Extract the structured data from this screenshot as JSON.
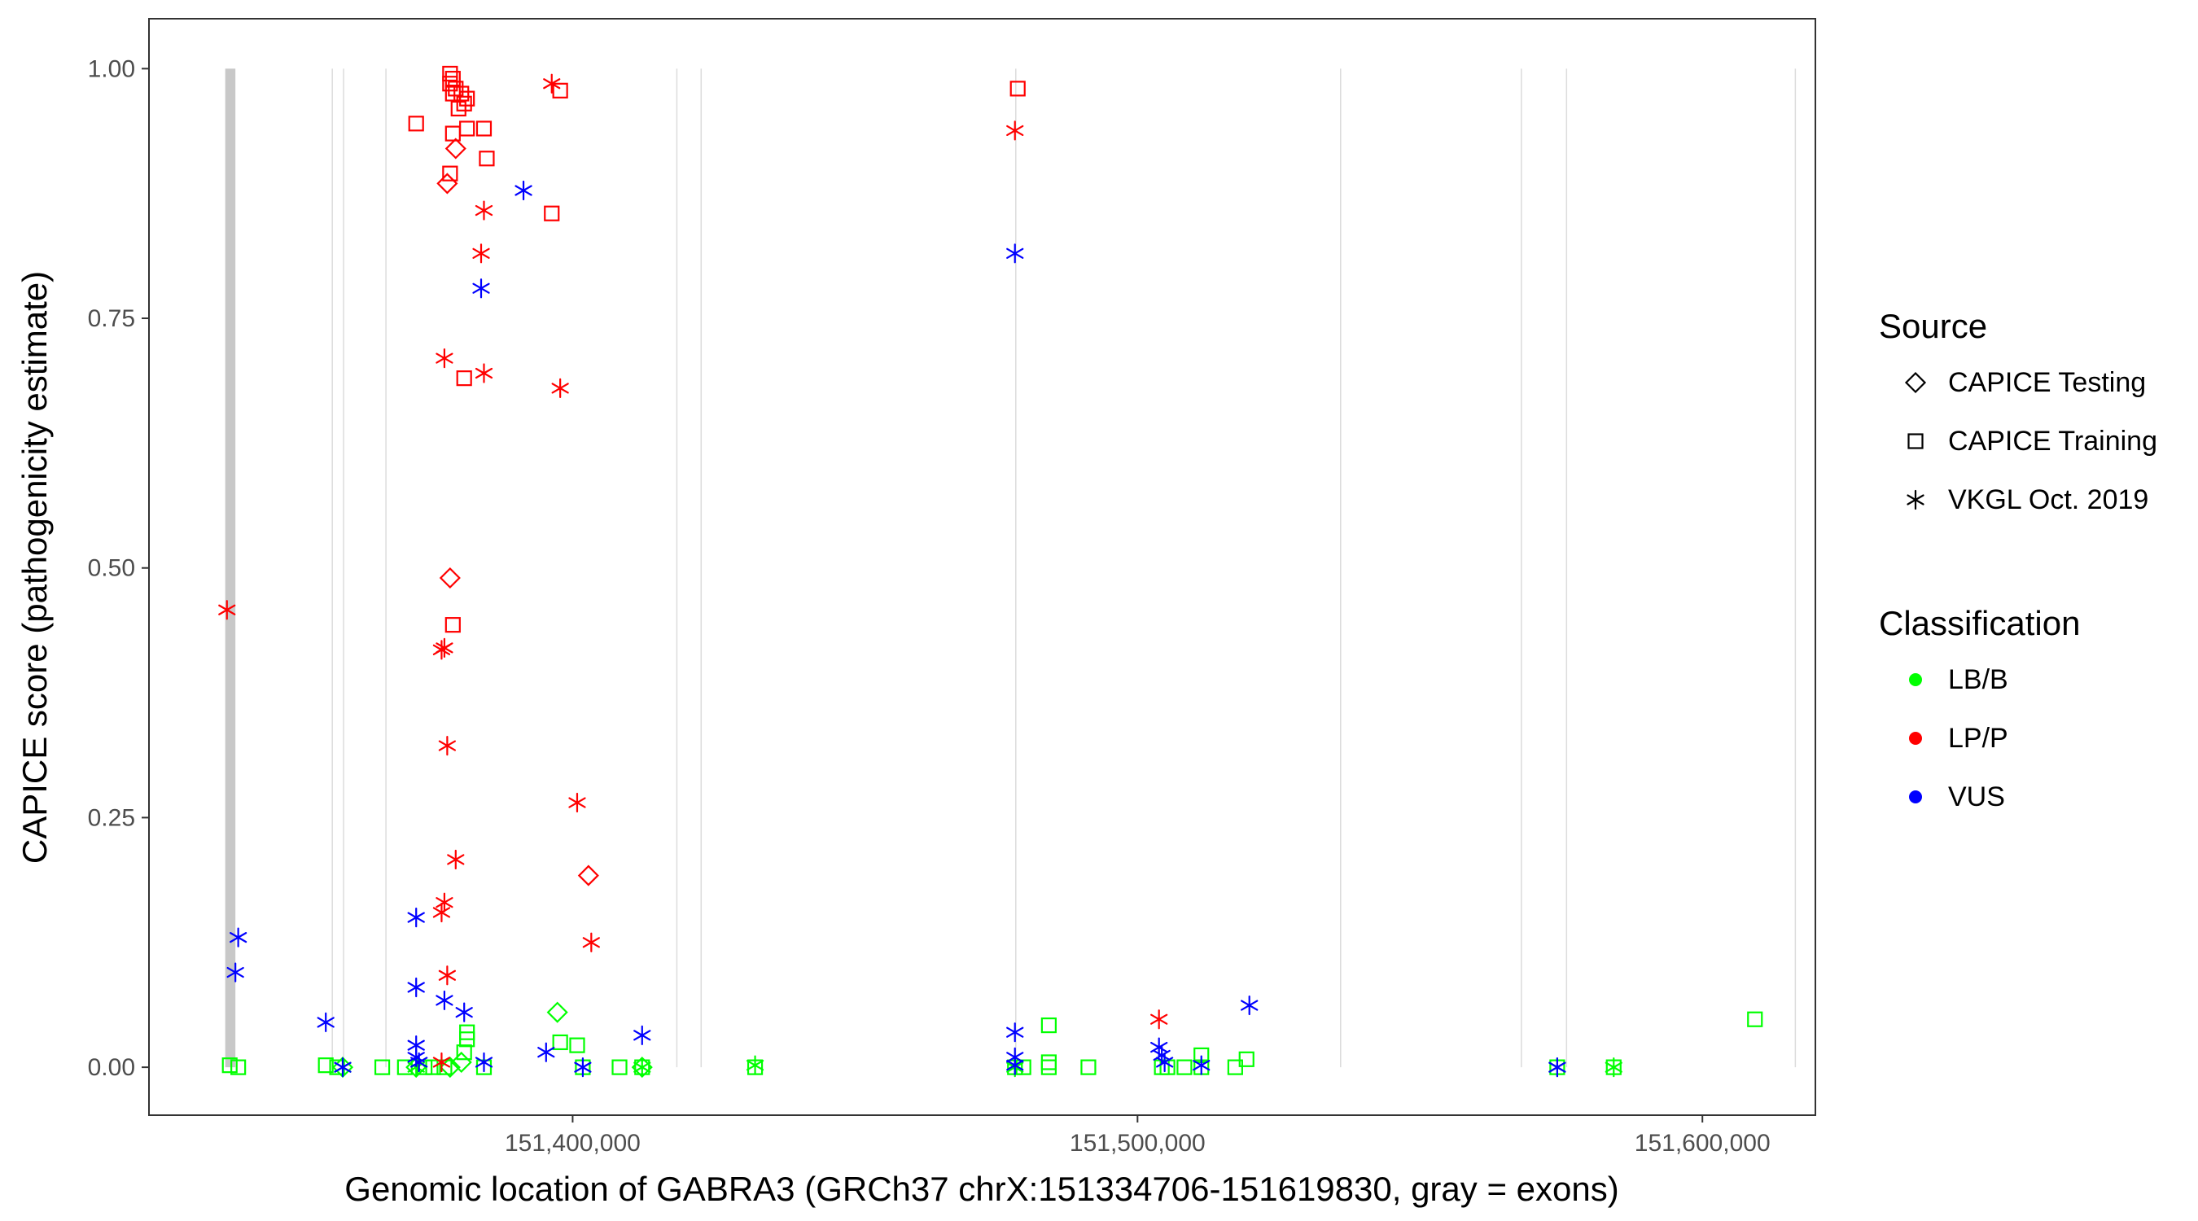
{
  "chart_data": {
    "type": "scatter",
    "title": "",
    "xlabel": "Genomic location of GABRA3 (GRCh37 chrX:151334706-151619830, gray = exons)",
    "ylabel": "CAPICE score (pathogenicity estimate)",
    "xlim": [
      151325000,
      151620000
    ],
    "ylim": [
      -0.048,
      1.05
    ],
    "x_ticks": [
      151400000,
      151500000,
      151600000
    ],
    "x_tick_labels": [
      "151,400,000",
      "151,500,000",
      "151,600,000"
    ],
    "y_ticks": [
      0.0,
      0.25,
      0.5,
      0.75,
      1.0
    ],
    "y_tick_labels": [
      "0.00",
      "0.25",
      "0.50",
      "0.75",
      "1.00"
    ],
    "grid": "vertical exon lines only",
    "exons": [
      {
        "start": 151338500,
        "end": 151340300
      },
      {
        "start": 151357300,
        "end": 151357600
      },
      {
        "start": 151359300,
        "end": 151359600
      },
      {
        "start": 151366800,
        "end": 151367100
      },
      {
        "start": 151418300,
        "end": 151418600
      },
      {
        "start": 151422600,
        "end": 151422900
      },
      {
        "start": 151478300,
        "end": 151478600
      },
      {
        "start": 151535800,
        "end": 151536100
      },
      {
        "start": 151567800,
        "end": 151568100
      },
      {
        "start": 151575800,
        "end": 151576100
      },
      {
        "start": 151616300,
        "end": 151616600
      }
    ],
    "legend": {
      "placement": "right",
      "source_title": "Source",
      "source_entries": [
        {
          "label": "CAPICE Testing",
          "shape": "diamond"
        },
        {
          "label": "CAPICE Training",
          "shape": "square"
        },
        {
          "label": "VKGL Oct. 2019",
          "shape": "asterisk"
        }
      ],
      "class_title": "Classification",
      "class_entries": [
        {
          "label": "LB/B",
          "color": "#00ff00"
        },
        {
          "label": "LP/P",
          "color": "#ff0000"
        },
        {
          "label": "VUS",
          "color": "#0000ff"
        }
      ]
    },
    "series": [
      {
        "name": "CAPICE Testing",
        "class": "LP/P",
        "shape": "diamond",
        "color": "#ff0000",
        "points": [
          [
            151377800,
            0.885
          ],
          [
            151379300,
            0.92
          ],
          [
            151378300,
            0.49
          ],
          [
            151402800,
            0.192
          ]
        ]
      },
      {
        "name": "CAPICE Testing",
        "class": "LB/B",
        "shape": "diamond",
        "color": "#00ff00",
        "points": [
          [
            151397300,
            0.055
          ],
          [
            151359300,
            0.0
          ],
          [
            151372300,
            0.0
          ],
          [
            151378300,
            0.0
          ],
          [
            151380300,
            0.005
          ],
          [
            151412300,
            0.0
          ]
        ]
      },
      {
        "name": "CAPICE Training",
        "class": "LP/P",
        "shape": "square",
        "color": "#ff0000",
        "points": [
          [
            151378300,
            0.995
          ],
          [
            151378800,
            0.99
          ],
          [
            151378300,
            0.985
          ],
          [
            151379300,
            0.98
          ],
          [
            151378800,
            0.975
          ],
          [
            151380300,
            0.975
          ],
          [
            151381300,
            0.97
          ],
          [
            151380800,
            0.965
          ],
          [
            151379800,
            0.96
          ],
          [
            151397800,
            0.978
          ],
          [
            151372300,
            0.945
          ],
          [
            151384300,
            0.94
          ],
          [
            151381300,
            0.94
          ],
          [
            151378800,
            0.935
          ],
          [
            151384800,
            0.91
          ],
          [
            151378300,
            0.895
          ],
          [
            151396300,
            0.855
          ],
          [
            151380800,
            0.69
          ],
          [
            151378800,
            0.443
          ],
          [
            151478800,
            0.98
          ]
        ]
      },
      {
        "name": "CAPICE Training",
        "class": "LB/B",
        "shape": "square",
        "color": "#00ff00",
        "points": [
          [
            151339300,
            0.002
          ],
          [
            151340800,
            0.0
          ],
          [
            151356300,
            0.002
          ],
          [
            151358300,
            0.0
          ],
          [
            151366300,
            0.0
          ],
          [
            151370300,
            0.0
          ],
          [
            151373800,
            0.0
          ],
          [
            151375300,
            0.0
          ],
          [
            151377300,
            0.0
          ],
          [
            151381300,
            0.035
          ],
          [
            151381300,
            0.028
          ],
          [
            151380800,
            0.015
          ],
          [
            151384300,
            0.0
          ],
          [
            151397800,
            0.025
          ],
          [
            151400800,
            0.022
          ],
          [
            151401800,
            0.0
          ],
          [
            151408300,
            0.0
          ],
          [
            151412300,
            0.0
          ],
          [
            151432300,
            0.0
          ],
          [
            151478300,
            0.0
          ],
          [
            151479800,
            0.0
          ],
          [
            151484300,
            0.042
          ],
          [
            151484300,
            0.005
          ],
          [
            151484300,
            0.0
          ],
          [
            151491300,
            0.0
          ],
          [
            151504300,
            0.0
          ],
          [
            151505300,
            0.0
          ],
          [
            151508300,
            0.0
          ],
          [
            151511300,
            0.012
          ],
          [
            151511300,
            0.0
          ],
          [
            151517300,
            0.0
          ],
          [
            151519300,
            0.008
          ],
          [
            151574300,
            0.0
          ],
          [
            151584300,
            0.0
          ],
          [
            151609300,
            0.048
          ]
        ]
      },
      {
        "name": "VKGL Oct. 2019",
        "class": "LP/P",
        "shape": "asterisk",
        "color": "#ff0000",
        "points": [
          [
            151396300,
            0.985
          ],
          [
            151384300,
            0.858
          ],
          [
            151383800,
            0.815
          ],
          [
            151377300,
            0.71
          ],
          [
            151384300,
            0.695
          ],
          [
            151397800,
            0.68
          ],
          [
            151338800,
            0.458
          ],
          [
            151376800,
            0.418
          ],
          [
            151377300,
            0.42
          ],
          [
            151377800,
            0.322
          ],
          [
            151400800,
            0.265
          ],
          [
            151379300,
            0.208
          ],
          [
            151377300,
            0.165
          ],
          [
            151376800,
            0.155
          ],
          [
            151403300,
            0.125
          ],
          [
            151377800,
            0.092
          ],
          [
            151376800,
            0.005
          ],
          [
            151478300,
            0.938
          ],
          [
            151503800,
            0.048
          ]
        ]
      },
      {
        "name": "VKGL Oct. 2019",
        "class": "LB/B",
        "shape": "asterisk",
        "color": "#00ff00",
        "points": [
          [
            151359300,
            0.0
          ],
          [
            151372300,
            0.0
          ],
          [
            151412300,
            0.0
          ],
          [
            151432300,
            0.002
          ],
          [
            151478300,
            0.0
          ],
          [
            151574300,
            0.0
          ],
          [
            151584300,
            0.0
          ]
        ]
      },
      {
        "name": "VKGL Oct. 2019",
        "class": "VUS",
        "shape": "asterisk",
        "color": "#0000ff",
        "points": [
          [
            151340800,
            0.13
          ],
          [
            151340300,
            0.095
          ],
          [
            151356300,
            0.045
          ],
          [
            151359300,
            0.0
          ],
          [
            151372300,
            0.15
          ],
          [
            151372300,
            0.08
          ],
          [
            151377300,
            0.067
          ],
          [
            151372300,
            0.022
          ],
          [
            151372300,
            0.01
          ],
          [
            151372800,
            0.005
          ],
          [
            151380800,
            0.055
          ],
          [
            151383800,
            0.78
          ],
          [
            151384300,
            0.005
          ],
          [
            151391300,
            0.878
          ],
          [
            151395300,
            0.015
          ],
          [
            151401800,
            0.0
          ],
          [
            151412300,
            0.032
          ],
          [
            151478300,
            0.815
          ],
          [
            151478300,
            0.035
          ],
          [
            151478300,
            0.01
          ],
          [
            151478300,
            0.002
          ],
          [
            151503800,
            0.02
          ],
          [
            151504300,
            0.012
          ],
          [
            151504800,
            0.005
          ],
          [
            151511300,
            0.002
          ],
          [
            151519800,
            0.062
          ],
          [
            151574300,
            0.0
          ]
        ]
      }
    ]
  }
}
